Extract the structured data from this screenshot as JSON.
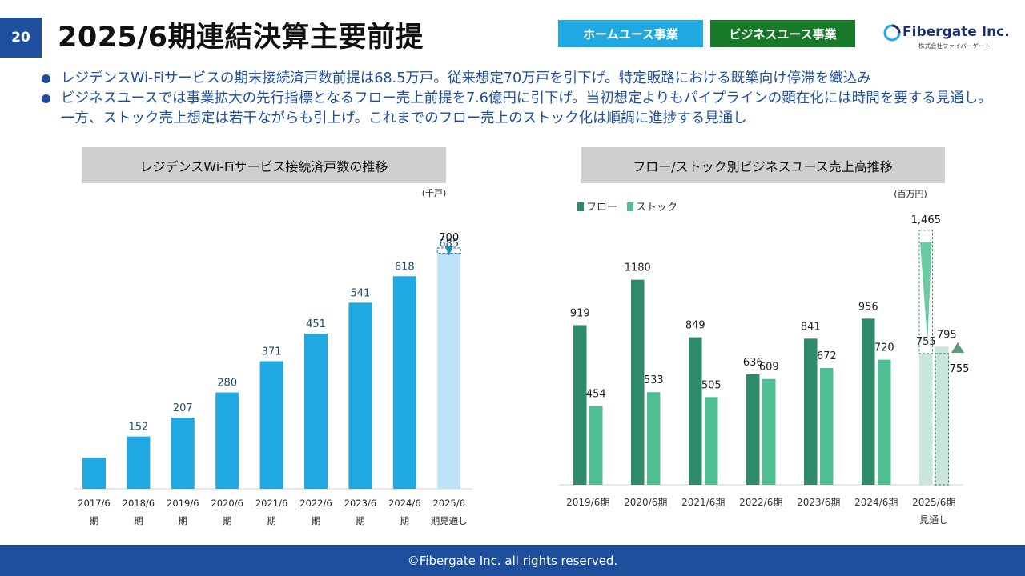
{
  "header": {
    "page_number": "20",
    "title": "2025/6期連結決算主要前提",
    "tags": [
      "ホームユース事業",
      "ビジネスユース事業"
    ],
    "logo_text": "Fibergate Inc.",
    "logo_sub": "株式会社ファイバーゲート"
  },
  "bullets": [
    "レジデンスWi-Fiサービスの期末接続済戸数前提は68.5万戸。従来想定70万戸を引下げ。特定販路における既築向け停滞を織込み",
    "ビジネスユースでは事業拡大の先行指標となるフロー売上前提を7.6億円に引下げ。当初想定よりもパイプラインの顕在化には時間を要する見通し。一方、ストック売上想定は若干ながらも引上げ。これまでのフロー売上のストック化は順調に進捗する見通し"
  ],
  "colors": {
    "brand_blue": "#1d4f9c",
    "bar_blue": "#1fa8e1",
    "bar_blue_forecast": "#bde3f6",
    "flow_green": "#2e8a6a",
    "stock_green": "#4fbf93",
    "forecast_green": "#c8e6dc"
  },
  "chart_data": [
    {
      "type": "bar",
      "title": "レジデンスWi-Fiサービス接続済戸数の推移",
      "unit": "(千戸)",
      "categories": [
        [
          "2017/6",
          "期"
        ],
        [
          "2018/6",
          "期"
        ],
        [
          "2019/6",
          "期"
        ],
        [
          "2020/6",
          "期"
        ],
        [
          "2021/6",
          "期"
        ],
        [
          "2022/6",
          "期"
        ],
        [
          "2023/6",
          "期"
        ],
        [
          "2024/6",
          "期"
        ],
        [
          "2025/6",
          "期見通し"
        ]
      ],
      "values": [
        null,
        152,
        207,
        280,
        371,
        451,
        541,
        618,
        685
      ],
      "bar_values": [
        90,
        152,
        207,
        280,
        371,
        451,
        541,
        618,
        685
      ],
      "forecast_index": 8,
      "previous_plan": 700,
      "grid": false
    },
    {
      "type": "bar",
      "title": "フロー/ストック別ビジネスユース売上高推移",
      "unit": "(百万円)",
      "categories": [
        [
          "2019/6期"
        ],
        [
          "2020/6期"
        ],
        [
          "2021/6期"
        ],
        [
          "2022/6期"
        ],
        [
          "2023/6期"
        ],
        [
          "2024/6期"
        ],
        [
          "2025/6期",
          "見通し"
        ]
      ],
      "series": [
        {
          "name": "フロー",
          "values": [
            919,
            1180,
            849,
            636,
            841,
            956,
            755
          ]
        },
        {
          "name": "ストック",
          "values": [
            454,
            533,
            505,
            609,
            672,
            720,
            795
          ]
        }
      ],
      "forecast_index": 6,
      "previous_plan": {
        "フロー": 1465,
        "ストック": 755
      },
      "legend": "top-left",
      "grid": false
    }
  ],
  "footer": "©Fibergate Inc. all rights reserved."
}
